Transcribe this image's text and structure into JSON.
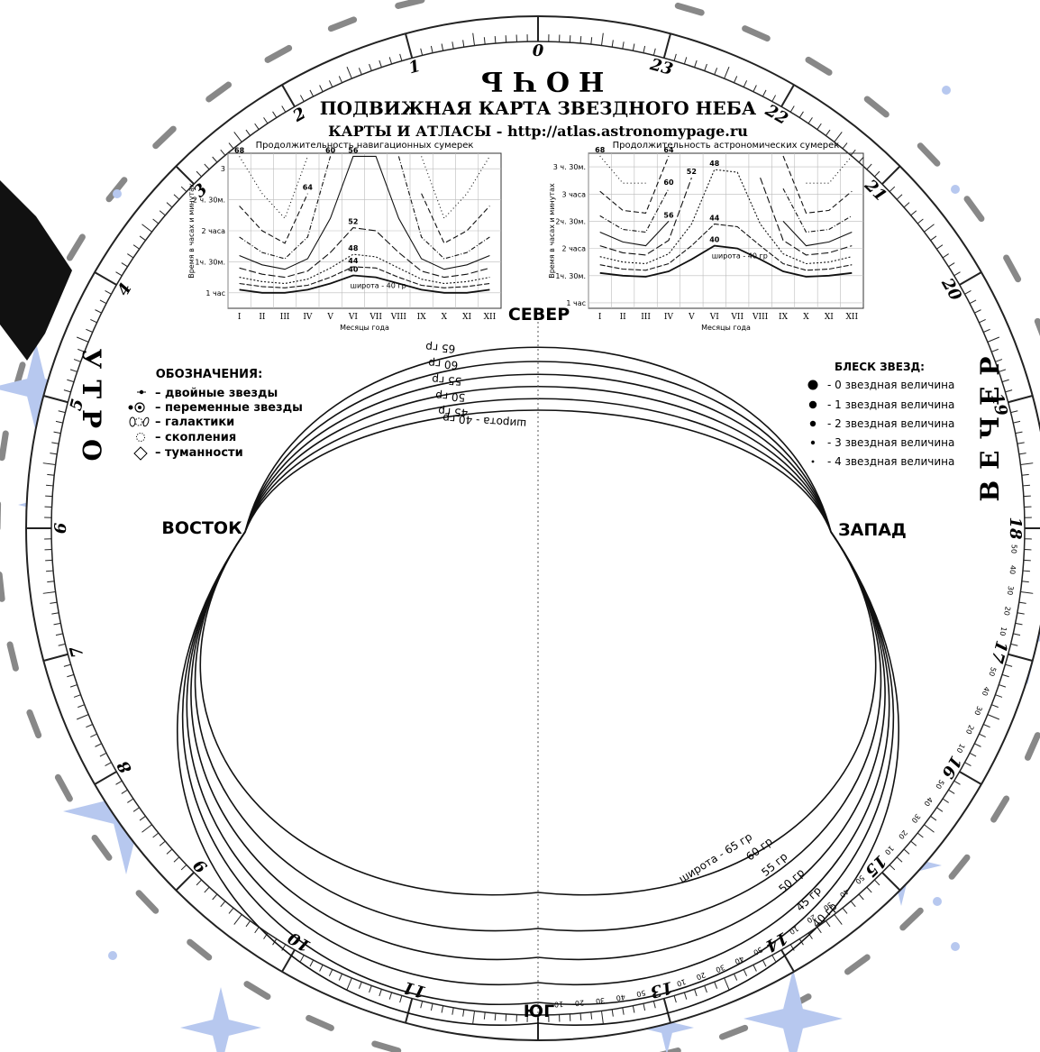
{
  "header": {
    "title": "ПОДВИЖНАЯ КАРТА ЗВЕЗДНОГО НЕБА",
    "subtitle": "КАРТЫ И АТЛАСЫ - http://atlas.astronomypage.ru"
  },
  "time_words": {
    "night": "НОЧЬ",
    "morning": "УТРО",
    "evening": "ВЕЧЕР"
  },
  "directions": {
    "north": "СЕВЕР",
    "south": "ЮГ",
    "east": "ВОСТОК",
    "west": "ЗАПАД"
  },
  "legend": {
    "title": "ОБОЗНАЧЕНИЯ:",
    "items": [
      "– двойные звезды",
      "– переменные звезды",
      "– галактики",
      "– скопления",
      "– туманности"
    ]
  },
  "magnitudes": {
    "title": "БЛЕСК ЗВЕЗД:",
    "items": [
      "- 0 звездная величина",
      "- 1 звездная величина",
      "- 2 звездная величина",
      "- 3 звездная величина",
      "- 4 звездная величина"
    ]
  },
  "latitudes": {
    "labels_top": [
      "65 гр",
      "60 гр",
      "55 гр",
      "50 гр",
      "45 гр",
      "широта - 40 гр"
    ],
    "labels_bottom": [
      "широта - 65 гр",
      "60 гр",
      "55 гр",
      "50 гр",
      "45 гр",
      "40 гр"
    ]
  },
  "hour_labels": [
    "0",
    "1",
    "2",
    "3",
    "4",
    "5",
    "6",
    "7",
    "8",
    "9",
    "10",
    "11",
    "13",
    "14",
    "15",
    "16",
    "17",
    "18",
    "19",
    "20",
    "21",
    "22",
    "23"
  ],
  "minute_labels": [
    "10",
    "20",
    "30",
    "40",
    "50"
  ],
  "chart_data": [
    {
      "type": "line",
      "title": "Продолжительность навигационных сумерек",
      "xlabel": "Месяцы года",
      "ylabel": "Время в часах и минутах",
      "categories": [
        "I",
        "II",
        "III",
        "IV",
        "V",
        "VI",
        "VII",
        "VIII",
        "IX",
        "X",
        "XI",
        "XII"
      ],
      "y_ticks": [
        "1 час",
        "1ч. 30м.",
        "2 часа",
        "2 ч. 30м.",
        "3"
      ],
      "ylim": [
        0.75,
        3.25
      ],
      "annotation": "широта - 40 гр",
      "series": [
        {
          "name": "40",
          "values": [
            1.05,
            1.0,
            1.0,
            1.05,
            1.15,
            1.28,
            1.25,
            1.15,
            1.05,
            1.0,
            1.0,
            1.05
          ]
        },
        {
          "name": "44",
          "values": [
            1.15,
            1.1,
            1.08,
            1.12,
            1.25,
            1.42,
            1.4,
            1.25,
            1.12,
            1.08,
            1.1,
            1.15
          ]
        },
        {
          "name": "48",
          "values": [
            1.25,
            1.18,
            1.15,
            1.22,
            1.4,
            1.62,
            1.58,
            1.4,
            1.22,
            1.15,
            1.18,
            1.25
          ]
        },
        {
          "name": "52",
          "values": [
            1.4,
            1.3,
            1.25,
            1.35,
            1.65,
            2.05,
            2.0,
            1.65,
            1.35,
            1.25,
            1.3,
            1.4
          ]
        },
        {
          "name": "56",
          "values": [
            1.6,
            1.45,
            1.38,
            1.55,
            2.2,
            3.2,
            3.2,
            2.2,
            1.55,
            1.38,
            1.45,
            1.6
          ]
        },
        {
          "name": "60",
          "values": [
            1.9,
            1.65,
            1.55,
            1.9,
            3.2,
            null,
            null,
            3.2,
            1.9,
            1.55,
            1.65,
            1.9
          ]
        },
        {
          "name": "64",
          "values": [
            2.4,
            2.0,
            1.8,
            2.6,
            null,
            null,
            null,
            null,
            2.6,
            1.8,
            2.0,
            2.4
          ]
        },
        {
          "name": "68",
          "values": [
            3.2,
            2.6,
            2.2,
            3.2,
            null,
            null,
            null,
            null,
            3.2,
            2.2,
            2.6,
            3.2
          ]
        }
      ]
    },
    {
      "type": "line",
      "title": "Продолжительность астрономических сумерек",
      "xlabel": "Месяцы года",
      "ylabel": "Время в часах и минутах",
      "categories": [
        "I",
        "II",
        "III",
        "IV",
        "V",
        "VI",
        "VII",
        "VIII",
        "IX",
        "X",
        "XI",
        "XII"
      ],
      "y_ticks": [
        "1 час",
        "1ч. 30м.",
        "2 часа",
        "2ч. 30м.",
        "3 часа",
        "3 ч. 30м."
      ],
      "ylim": [
        0.9,
        3.75
      ],
      "annotation": "широта - 40 гр",
      "series": [
        {
          "name": "40",
          "values": [
            1.55,
            1.5,
            1.48,
            1.58,
            1.8,
            2.05,
            2.0,
            1.8,
            1.58,
            1.48,
            1.5,
            1.55
          ]
        },
        {
          "name": "44",
          "values": [
            1.7,
            1.62,
            1.6,
            1.72,
            2.05,
            2.45,
            2.4,
            2.05,
            1.72,
            1.6,
            1.62,
            1.7
          ]
        },
        {
          "name": "48",
          "values": [
            1.85,
            1.75,
            1.72,
            1.9,
            2.45,
            3.45,
            3.4,
            2.45,
            1.9,
            1.72,
            1.75,
            1.85
          ]
        },
        {
          "name": "52",
          "values": [
            2.05,
            1.92,
            1.88,
            2.15,
            3.3,
            null,
            null,
            3.3,
            2.15,
            1.88,
            1.92,
            2.05
          ]
        },
        {
          "name": "56",
          "values": [
            2.3,
            2.12,
            2.05,
            2.5,
            null,
            null,
            null,
            null,
            2.5,
            2.05,
            2.12,
            2.3
          ]
        },
        {
          "name": "60",
          "values": [
            2.6,
            2.35,
            2.3,
            3.1,
            null,
            null,
            null,
            null,
            3.1,
            2.3,
            2.35,
            2.6
          ]
        },
        {
          "name": "64",
          "values": [
            3.05,
            2.7,
            2.65,
            3.7,
            null,
            null,
            null,
            null,
            3.7,
            2.65,
            2.7,
            3.05
          ]
        },
        {
          "name": "68",
          "values": [
            3.7,
            3.2,
            3.2,
            null,
            null,
            null,
            null,
            null,
            null,
            3.2,
            3.2,
            3.7
          ]
        }
      ]
    }
  ]
}
